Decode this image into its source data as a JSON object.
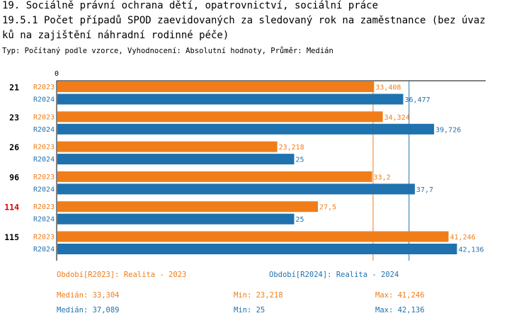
{
  "header": {
    "line1": "19. Sociálně právní ochrana dětí, opatrovnictví, sociální práce",
    "line2": "19.5.1 Počet případů SPOD zaevidovaných za sledovaný rok na zaměstnance (bez úvaz",
    "line3": "ků na zajištění náhradní rodinné péče)",
    "subtitle": "Typ: Počítaný podle vzorce, Vyhodnocení: Absolutní hodnoty, Průměr: Medián"
  },
  "colors": {
    "R2023": "#f07d19",
    "R2024": "#2072ae",
    "highlight": "#e00000"
  },
  "chart_data": {
    "type": "bar",
    "orientation": "horizontal",
    "axis_zero_label": "0",
    "xlim": [
      0,
      45
    ],
    "categories": [
      "21",
      "23",
      "26",
      "96",
      "114",
      "115"
    ],
    "highlighted_category": "114",
    "series": [
      {
        "name": "R2023",
        "values": [
          33.408,
          34.324,
          23.218,
          33.2,
          27.5,
          41.246
        ],
        "labels": [
          "33,408",
          "34,324",
          "23,218",
          "33,2",
          "27,5",
          "41,246"
        ]
      },
      {
        "name": "R2024",
        "values": [
          36.477,
          39.726,
          25,
          37.7,
          25,
          42.136
        ],
        "labels": [
          "36,477",
          "39,726",
          "25",
          "37,7",
          "25",
          "42,136"
        ]
      }
    ],
    "reference_lines": [
      {
        "series": "R2023",
        "value": 33.304
      },
      {
        "series": "R2024",
        "value": 37.089
      }
    ]
  },
  "legend": {
    "r2023": "Období[R2023]: Realita - 2023",
    "r2024": "Období[R2024]: Realita - 2024"
  },
  "stats": {
    "r2023": {
      "median": "Medián: 33,304",
      "min": "Min: 23,218",
      "max": "Max: 41,246"
    },
    "r2024": {
      "median": "Medián: 37,089",
      "min": "Min: 25",
      "max": "Max: 42,136"
    }
  }
}
